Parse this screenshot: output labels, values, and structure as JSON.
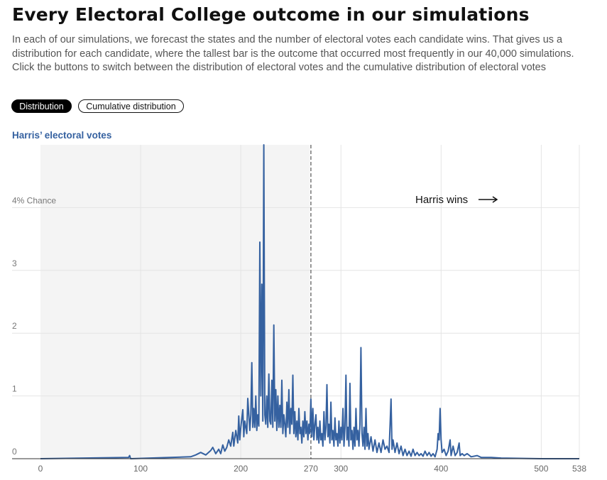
{
  "header": {
    "title": "Every Electoral College outcome in our simulations",
    "description": "In each of our simulations, we forecast the states and the number of electoral votes each candidate wins. That gives us a distribution for each candidate, where the tallest bar is the outcome that occurred most frequently in our 40,000 simulations. Click the buttons to switch between the distribution of electoral votes and the cumulative distribution of electoral votes"
  },
  "toggle": {
    "distribution_label": "Distribution",
    "cumulative_label": "Cumulative distribution",
    "selected": "Distribution"
  },
  "colors": {
    "line": "#3561a0",
    "shade": "#f4f4f4",
    "grid": "#e4e4e4",
    "threshold": "#777777",
    "title_accent": "#3561a0"
  },
  "chart_data": {
    "type": "line",
    "title": "Harris’ electoral votes",
    "ylabel_top": "4% Chance",
    "y_ticks": [
      {
        "value": 0,
        "label": "0"
      },
      {
        "value": 1,
        "label": "1"
      },
      {
        "value": 2,
        "label": "2"
      },
      {
        "value": 3,
        "label": "3"
      },
      {
        "value": 4,
        "label": "4% Chance"
      }
    ],
    "x_ticks": [
      {
        "value": 0,
        "label": "0"
      },
      {
        "value": 100,
        "label": "100"
      },
      {
        "value": 200,
        "label": "200"
      },
      {
        "value": 270,
        "label": "270"
      },
      {
        "value": 300,
        "label": "300"
      },
      {
        "value": 400,
        "label": "400"
      },
      {
        "value": 500,
        "label": "500"
      },
      {
        "value": 538,
        "label": "538"
      }
    ],
    "xlim": [
      0,
      538
    ],
    "ylim": [
      0,
      5
    ],
    "threshold": 270,
    "shaded_range": [
      0,
      269
    ],
    "annotation": "Harris wins",
    "grid": true,
    "series": [
      {
        "points": [
          [
            0,
            0
          ],
          [
            88,
            0.02
          ],
          [
            89,
            0.05
          ],
          [
            90,
            0
          ],
          [
            150,
            0.03
          ],
          [
            155,
            0.06
          ],
          [
            160,
            0.1
          ],
          [
            165,
            0.06
          ],
          [
            170,
            0.13
          ],
          [
            172,
            0.18
          ],
          [
            175,
            0.08
          ],
          [
            178,
            0.15
          ],
          [
            180,
            0.08
          ],
          [
            182,
            0.22
          ],
          [
            184,
            0.12
          ],
          [
            186,
            0.18
          ],
          [
            188,
            0.3
          ],
          [
            190,
            0.2
          ],
          [
            192,
            0.42
          ],
          [
            193,
            0.2
          ],
          [
            195,
            0.45
          ],
          [
            197,
            0.25
          ],
          [
            198,
            0.68
          ],
          [
            199,
            0.3
          ],
          [
            200,
            0.5
          ],
          [
            202,
            0.78
          ],
          [
            203,
            0.35
          ],
          [
            204,
            0.6
          ],
          [
            206,
            0.4
          ],
          [
            207,
            0.96
          ],
          [
            209,
            0.45
          ],
          [
            210,
            0.7
          ],
          [
            211,
            1.53
          ],
          [
            212,
            0.5
          ],
          [
            213,
            0.8
          ],
          [
            214,
            0.5
          ],
          [
            215,
            1.0
          ],
          [
            216,
            0.45
          ],
          [
            217,
            0.7
          ],
          [
            218,
            0.52
          ],
          [
            219,
            3.45
          ],
          [
            220,
            1.0
          ],
          [
            221,
            2.78
          ],
          [
            222,
            0.6
          ],
          [
            223,
            5.0
          ],
          [
            224,
            0.7
          ],
          [
            225,
            0.55
          ],
          [
            226,
            1.0
          ],
          [
            227,
            0.5
          ],
          [
            228,
            1.35
          ],
          [
            229,
            0.6
          ],
          [
            230,
            0.55
          ],
          [
            231,
            1.25
          ],
          [
            232,
            0.5
          ],
          [
            233,
            2.13
          ],
          [
            234,
            0.6
          ],
          [
            235,
            1.1
          ],
          [
            236,
            0.45
          ],
          [
            237,
            1.0
          ],
          [
            238,
            0.5
          ],
          [
            239,
            0.85
          ],
          [
            240,
            0.5
          ],
          [
            241,
            1.25
          ],
          [
            242,
            0.4
          ],
          [
            243,
            0.7
          ],
          [
            244,
            0.55
          ],
          [
            245,
            0.35
          ],
          [
            246,
            0.9
          ],
          [
            247,
            0.5
          ],
          [
            248,
            1.1
          ],
          [
            249,
            0.4
          ],
          [
            250,
            0.8
          ],
          [
            251,
            0.55
          ],
          [
            252,
            1.33
          ],
          [
            253,
            0.4
          ],
          [
            254,
            0.75
          ],
          [
            255,
            0.35
          ],
          [
            256,
            0.6
          ],
          [
            257,
            0.3
          ],
          [
            258,
            0.8
          ],
          [
            259,
            0.4
          ],
          [
            260,
            0.5
          ],
          [
            261,
            0.25
          ],
          [
            262,
            0.6
          ],
          [
            263,
            0.35
          ],
          [
            264,
            0.75
          ],
          [
            265,
            0.4
          ],
          [
            266,
            0.6
          ],
          [
            267,
            0.3
          ],
          [
            268,
            0.55
          ],
          [
            269,
            0.4
          ],
          [
            270,
            0.95
          ],
          [
            271,
            0.35
          ],
          [
            272,
            0.8
          ],
          [
            273,
            0.3
          ],
          [
            274,
            0.55
          ],
          [
            275,
            0.7
          ],
          [
            276,
            0.3
          ],
          [
            277,
            0.5
          ],
          [
            278,
            0.25
          ],
          [
            279,
            0.6
          ],
          [
            280,
            0.3
          ],
          [
            281,
            0.4
          ],
          [
            282,
            0.2
          ],
          [
            283,
            0.75
          ],
          [
            284,
            0.3
          ],
          [
            285,
            0.5
          ],
          [
            286,
            1.18
          ],
          [
            287,
            0.35
          ],
          [
            288,
            0.55
          ],
          [
            289,
            0.25
          ],
          [
            290,
            0.9
          ],
          [
            291,
            0.3
          ],
          [
            292,
            0.45
          ],
          [
            293,
            0.2
          ],
          [
            294,
            0.65
          ],
          [
            295,
            0.3
          ],
          [
            296,
            0.4
          ],
          [
            297,
            0.2
          ],
          [
            298,
            0.6
          ],
          [
            299,
            0.25
          ],
          [
            300,
            0.5
          ],
          [
            301,
            0.3
          ],
          [
            302,
            0.8
          ],
          [
            303,
            0.2
          ],
          [
            304,
            0.5
          ],
          [
            305,
            1.33
          ],
          [
            306,
            0.3
          ],
          [
            307,
            0.5
          ],
          [
            308,
            0.2
          ],
          [
            309,
            1.2
          ],
          [
            310,
            0.3
          ],
          [
            311,
            0.45
          ],
          [
            312,
            0.15
          ],
          [
            313,
            0.5
          ],
          [
            314,
            0.2
          ],
          [
            315,
            0.8
          ],
          [
            316,
            0.3
          ],
          [
            317,
            0.45
          ],
          [
            318,
            0.2
          ],
          [
            319,
            0.55
          ],
          [
            320,
            1.77
          ],
          [
            321,
            0.4
          ],
          [
            322,
            0.2
          ],
          [
            323,
            0.5
          ],
          [
            324,
            0.15
          ],
          [
            325,
            0.8
          ],
          [
            326,
            0.2
          ],
          [
            327,
            0.4
          ],
          [
            328,
            0.15
          ],
          [
            330,
            0.35
          ],
          [
            332,
            0.12
          ],
          [
            334,
            0.3
          ],
          [
            336,
            0.1
          ],
          [
            338,
            0.25
          ],
          [
            340,
            0.1
          ],
          [
            342,
            0.3
          ],
          [
            344,
            0.15
          ],
          [
            346,
            0.2
          ],
          [
            348,
            0.1
          ],
          [
            350,
            0.95
          ],
          [
            351,
            0.15
          ],
          [
            352,
            0.3
          ],
          [
            354,
            0.1
          ],
          [
            356,
            0.25
          ],
          [
            358,
            0.08
          ],
          [
            360,
            0.2
          ],
          [
            362,
            0.05
          ],
          [
            364,
            0.15
          ],
          [
            366,
            0.05
          ],
          [
            368,
            0.12
          ],
          [
            370,
            0.04
          ],
          [
            372,
            0.15
          ],
          [
            374,
            0.05
          ],
          [
            376,
            0.1
          ],
          [
            378,
            0.05
          ],
          [
            380,
            0.08
          ],
          [
            382,
            0.04
          ],
          [
            384,
            0.12
          ],
          [
            386,
            0.05
          ],
          [
            388,
            0.1
          ],
          [
            390,
            0.04
          ],
          [
            392,
            0.08
          ],
          [
            394,
            0.03
          ],
          [
            396,
            0.15
          ],
          [
            397,
            0.4
          ],
          [
            398,
            0.3
          ],
          [
            399,
            0.8
          ],
          [
            400,
            0.3
          ],
          [
            401,
            0.1
          ],
          [
            403,
            0.15
          ],
          [
            405,
            0.05
          ],
          [
            407,
            0.12
          ],
          [
            409,
            0.3
          ],
          [
            410,
            0.05
          ],
          [
            412,
            0.2
          ],
          [
            414,
            0.05
          ],
          [
            416,
            0.1
          ],
          [
            418,
            0.25
          ],
          [
            419,
            0.05
          ],
          [
            421,
            0.08
          ],
          [
            423,
            0.05
          ],
          [
            426,
            0.08
          ],
          [
            430,
            0.03
          ],
          [
            436,
            0.05
          ],
          [
            440,
            0.02
          ],
          [
            450,
            0.02
          ],
          [
            460,
            0.01
          ],
          [
            500,
            0
          ],
          [
            538,
            0
          ]
        ]
      }
    ]
  }
}
